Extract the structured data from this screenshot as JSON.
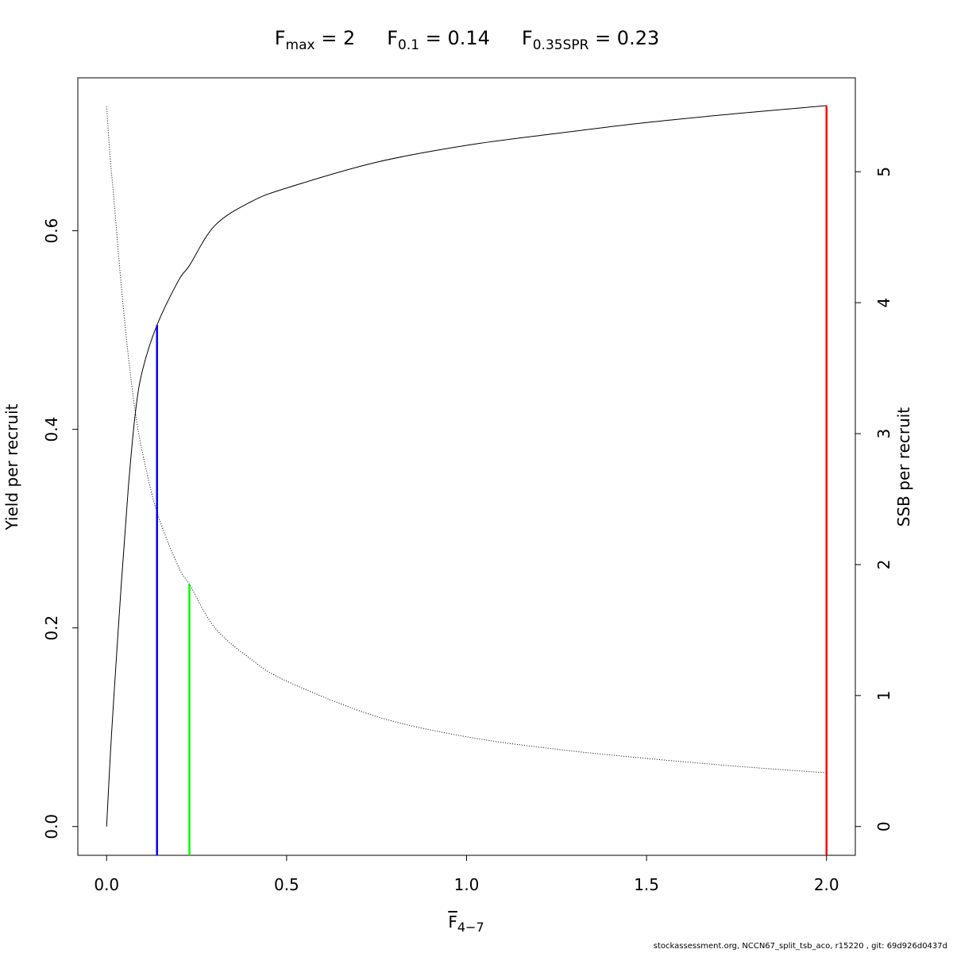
{
  "chart_data": {
    "type": "line",
    "title": [
      {
        "main": "F",
        "sub": "max",
        "rest": " = 2"
      },
      {
        "main": "F",
        "sub": "0.1",
        "rest": " = 0.14"
      },
      {
        "main": "F",
        "sub": "0.35SPR",
        "rest": " = 0.23"
      }
    ],
    "x_label": {
      "main": "F",
      "sub": "4−7"
    },
    "y_label": "Yield per recruit",
    "y2_label": "SSB per recruit",
    "footnote": "stockassessment.org, NCCN67_split_tsb_aco, r15220 , git: 69d926d0437d",
    "x": [
      0,
      0.01,
      0.02,
      0.04,
      0.06,
      0.08,
      0.1,
      0.14,
      0.2,
      0.23,
      0.3,
      0.4,
      0.5,
      0.75,
      1,
      1.25,
      1.5,
      1.75,
      2
    ],
    "series": [
      {
        "name": "Yield per recruit",
        "color": "#000000",
        "dash": "none",
        "values": [
          0,
          0.07,
          0.13,
          0.24,
          0.34,
          0.417,
          0.46,
          0.505,
          0.55,
          0.565,
          0.605,
          0.629,
          0.643,
          0.669,
          0.686,
          0.698,
          0.709,
          0.718,
          0.726
        ]
      },
      {
        "name": "SSB per recruit",
        "color": "#000000",
        "dash": "1 2",
        "axis": "y2",
        "values": [
          5.5,
          5.1,
          4.8,
          4.15,
          3.6,
          3.16,
          2.85,
          2.4,
          1.98,
          1.85,
          1.52,
          1.28,
          1.11,
          0.84,
          0.685,
          0.59,
          0.52,
          0.46,
          0.41
        ]
      }
    ],
    "reference_lines": [
      {
        "x": 0.14,
        "top": 0.505,
        "color": "#0000ff"
      },
      {
        "x": 0.23,
        "top": 1.85,
        "axis": "y2",
        "color": "#00ff00"
      },
      {
        "x": 2,
        "top": 0.726,
        "color": "#ff0000"
      }
    ],
    "xlim": [
      -0.08,
      2.08
    ],
    "xticks": [
      {
        "value": 0,
        "label": "0.0"
      },
      {
        "value": 0.5,
        "label": "0.5"
      },
      {
        "value": 1,
        "label": "1.0"
      },
      {
        "value": 1.5,
        "label": "1.5"
      },
      {
        "value": 2,
        "label": "2.0"
      }
    ],
    "ylim": [
      -0.029,
      0.754
    ],
    "yticks": [
      {
        "value": 0,
        "label": "0.0"
      },
      0.2,
      0.4,
      0.6
    ],
    "y2lim": [
      -0.22,
      5.717
    ],
    "y2ticks": [
      0,
      1,
      2,
      3,
      4,
      5
    ],
    "grid": false
  }
}
